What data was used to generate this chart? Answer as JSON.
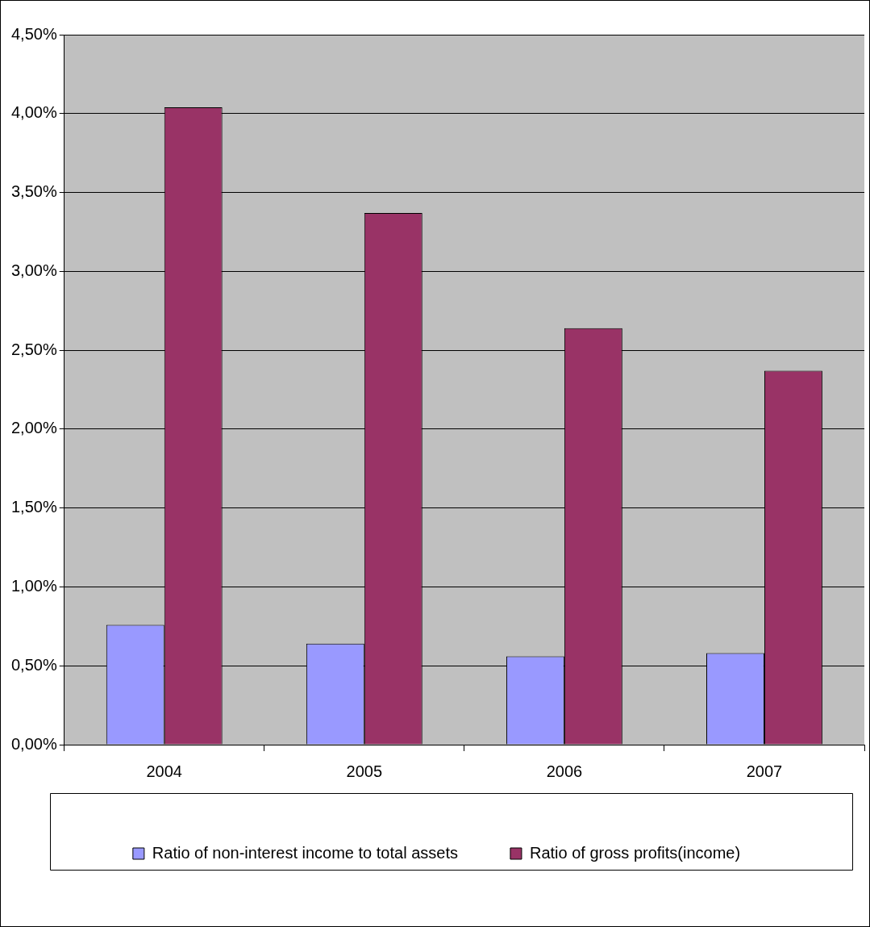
{
  "chart_data": {
    "type": "bar",
    "categories": [
      "2004",
      "2005",
      "2006",
      "2007"
    ],
    "series": [
      {
        "name": "Ratio of non-interest income to total assets",
        "color": "#9999ff",
        "values": [
          0.76,
          0.64,
          0.56,
          0.58
        ]
      },
      {
        "name": "Ratio of gross profits(income)",
        "color": "#993366",
        "values": [
          4.04,
          3.37,
          2.64,
          2.37
        ]
      }
    ],
    "ylim": [
      0,
      4.5
    ],
    "yticks": [
      {
        "value": 0,
        "label": "0,00%"
      },
      {
        "value": 0.5,
        "label": "0,50%"
      },
      {
        "value": 1,
        "label": "1,00%"
      },
      {
        "value": 1.5,
        "label": "1,50%"
      },
      {
        "value": 2,
        "label": "2,00%"
      },
      {
        "value": 2.5,
        "label": "2,50%"
      },
      {
        "value": 3,
        "label": "3,00%"
      },
      {
        "value": 3.5,
        "label": "3,50%"
      },
      {
        "value": 4,
        "label": "4,00%"
      },
      {
        "value": 4.5,
        "label": "4,50%"
      }
    ],
    "grid": "y",
    "legend": "bottom"
  }
}
